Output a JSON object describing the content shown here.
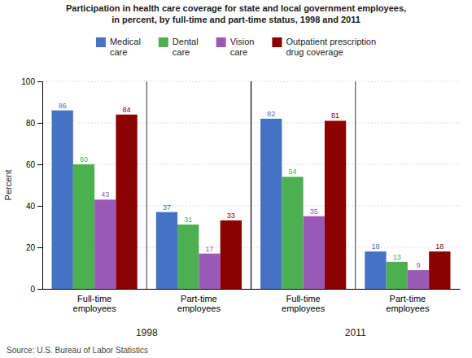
{
  "chart_data": {
    "type": "bar",
    "title": "Participation in health care coverage for state and local government employees,\nin percent, by full-time and part-time status, 1998 and 2011",
    "categories": [
      "Full-time\nemployees",
      "Part-time\nemployees",
      "Full-time\nemployees",
      "Part-time\nemployees"
    ],
    "series": [
      {
        "name": "Medical\ncare",
        "color": "#4472C4",
        "values": [
          86,
          37,
          82,
          18
        ]
      },
      {
        "name": "Dental\ncare",
        "color": "#4CAF50",
        "values": [
          60,
          31,
          54,
          13
        ]
      },
      {
        "name": "Vision\ncare",
        "color": "#9B59B6",
        "values": [
          43,
          17,
          35,
          9
        ]
      },
      {
        "name": "Outpatient prescription\ndrug coverage",
        "color": "#8B0000",
        "values": [
          84,
          33,
          81,
          18
        ]
      }
    ],
    "annotations": [
      "1998",
      "2011"
    ],
    "ylabel": "Percent",
    "source": "Source: U.S. Bureau of Labor Statistics",
    "ylim": [
      0,
      100
    ],
    "yticks": [
      0,
      20,
      40,
      60,
      80,
      100
    ],
    "grid": true,
    "legend": "top",
    "data_labels": true
  }
}
